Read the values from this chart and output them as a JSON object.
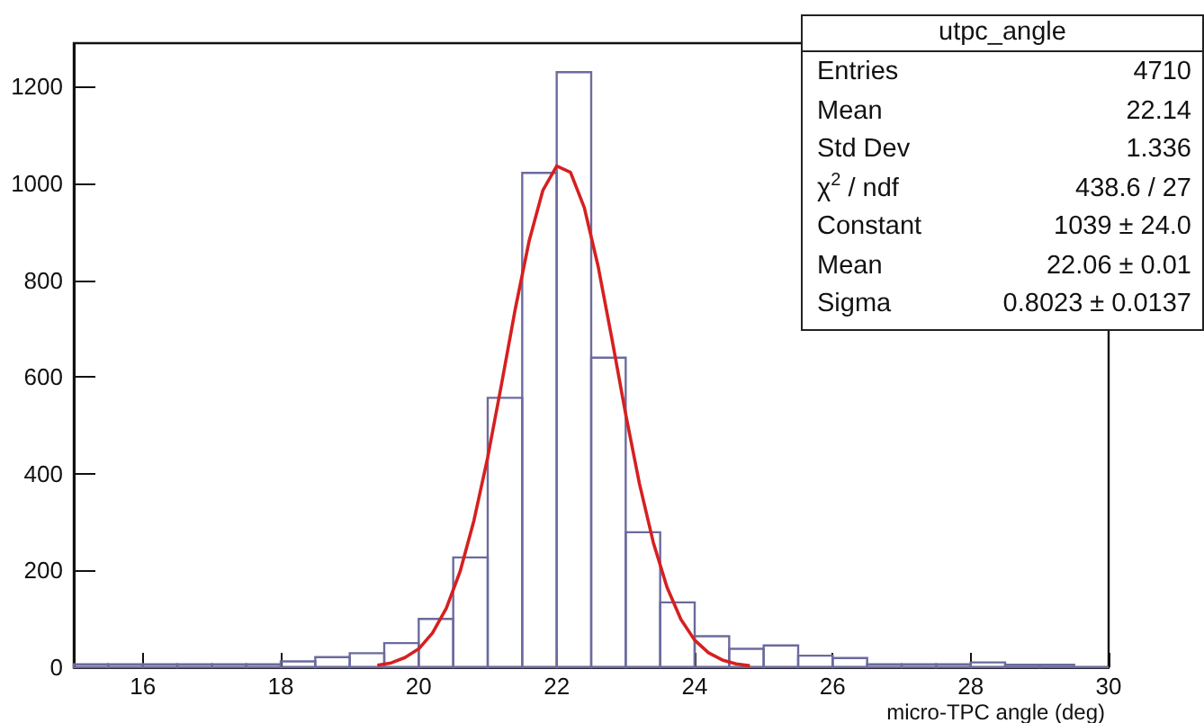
{
  "chart_data": {
    "type": "histogram",
    "title": "utpc_angle",
    "xlabel": "micro-TPC angle (deg)",
    "bins": [
      15,
      15.5,
      16,
      16.5,
      17,
      17.5,
      18,
      18.5,
      19,
      19.5,
      20,
      20.5,
      21,
      21.5,
      22,
      22.5,
      23,
      23.5,
      24,
      24.5,
      25,
      25.5,
      26,
      26.5,
      27,
      27.5,
      28,
      28.5,
      29,
      29.5,
      30
    ],
    "values": [
      6,
      6,
      6,
      6,
      6,
      6,
      12,
      21,
      29,
      50,
      100,
      227,
      557,
      1022,
      1230,
      640,
      279,
      134,
      64,
      38,
      45,
      24,
      19,
      6,
      6,
      6,
      10,
      5,
      5,
      0
    ],
    "color": "#6b6b9e",
    "series": [
      {
        "type": "line",
        "color": "#d62020",
        "x": [
          19.4,
          19.6,
          19.8,
          20.0,
          20.2,
          20.4,
          20.6,
          20.8,
          21.0,
          21.2,
          21.4,
          21.6,
          21.8,
          22.0,
          22.2,
          22.4,
          22.6,
          22.8,
          23.0,
          23.2,
          23.4,
          23.6,
          23.8,
          24.0,
          24.2,
          24.4,
          24.6,
          24.8
        ],
        "values": [
          4,
          9,
          20,
          38,
          71,
          122,
          198,
          303,
          434,
          585,
          741,
          881,
          986,
          1036,
          1023,
          950,
          829,
          679,
          523,
          379,
          258,
          165,
          99,
          56,
          30,
          15,
          7,
          3
        ]
      }
    ],
    "xlim": [
      15,
      30
    ],
    "xticks": [
      16,
      18,
      20,
      22,
      24,
      26,
      28,
      30
    ],
    "ylim": [
      0,
      1290
    ],
    "yticks": [
      0,
      200,
      400,
      600,
      800,
      1000,
      1200
    ],
    "annotations": [
      "Entries",
      "4710",
      "Mean",
      "22.14",
      "Std Dev",
      "1.336",
      "χ$^{2}$ / ndf",
      "438.6 / 27",
      "Constant",
      "1039 ± 24.0",
      "Mean",
      "22.06 ± 0.01",
      "Sigma",
      "0.8023 ± 0.0137"
    ],
    "grid": false,
    "marker": "none",
    "line_style": "solid"
  }
}
